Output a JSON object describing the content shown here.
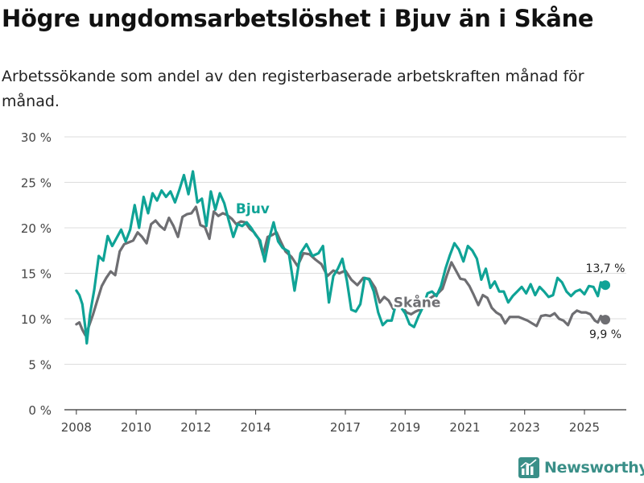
{
  "title": "Högre ungdomsarbetslöshet i Bjuv än i Skåne",
  "subtitle": "Arbetssökande som andel av den registerbaserade arbetskraften månad för månad.",
  "brand": {
    "name": "Newsworthy",
    "icon": "bar-chart-logo-icon"
  },
  "colors": {
    "bjuv": "#0fa396",
    "skane": "#6e6e72",
    "grid": "#dddddd",
    "axis": "#333333"
  },
  "chart_data": {
    "type": "line",
    "ylim": [
      0,
      30
    ],
    "xlim": [
      2007.6,
      2026.4
    ],
    "yticks": [
      0,
      5,
      10,
      15,
      20,
      25,
      30
    ],
    "ytick_labels": [
      "0 %",
      "5 %",
      "10 %",
      "15 %",
      "20 %",
      "25 %",
      "30 %"
    ],
    "xticks": [
      2008,
      2010,
      2012,
      2014,
      2017,
      2019,
      2021,
      2023,
      2025
    ],
    "xtick_labels": [
      "2008",
      "2010",
      "2012",
      "2014",
      "2017",
      "2019",
      "2021",
      "2023",
      "2025"
    ],
    "series": [
      {
        "name": "Bjuv",
        "label": "Bjuv",
        "end_label": "13,7 %",
        "color": "#0fa396",
        "points": [
          [
            2008.0,
            13.1
          ],
          [
            2008.1,
            12.6
          ],
          [
            2008.2,
            11.6
          ],
          [
            2008.3,
            9.0
          ],
          [
            2008.35,
            7.3
          ],
          [
            2008.45,
            10.4
          ],
          [
            2008.6,
            13.2
          ],
          [
            2008.75,
            16.9
          ],
          [
            2008.9,
            16.4
          ],
          [
            2009.05,
            19.1
          ],
          [
            2009.2,
            18.0
          ],
          [
            2009.35,
            18.9
          ],
          [
            2009.5,
            19.8
          ],
          [
            2009.65,
            18.5
          ],
          [
            2009.8,
            19.8
          ],
          [
            2009.95,
            22.5
          ],
          [
            2010.1,
            20.0
          ],
          [
            2010.25,
            23.4
          ],
          [
            2010.4,
            21.6
          ],
          [
            2010.55,
            23.8
          ],
          [
            2010.7,
            23.0
          ],
          [
            2010.85,
            24.1
          ],
          [
            2011.0,
            23.4
          ],
          [
            2011.15,
            24.0
          ],
          [
            2011.3,
            22.8
          ],
          [
            2011.45,
            24.2
          ],
          [
            2011.6,
            25.8
          ],
          [
            2011.75,
            23.7
          ],
          [
            2011.9,
            26.2
          ],
          [
            2012.05,
            22.8
          ],
          [
            2012.2,
            23.2
          ],
          [
            2012.35,
            20.2
          ],
          [
            2012.5,
            24.0
          ],
          [
            2012.65,
            22.0
          ],
          [
            2012.8,
            23.8
          ],
          [
            2012.95,
            22.7
          ],
          [
            2013.1,
            20.8
          ],
          [
            2013.25,
            19.0
          ],
          [
            2013.4,
            20.4
          ],
          [
            2013.55,
            20.2
          ],
          [
            2013.7,
            20.6
          ],
          [
            2013.85,
            20.0
          ],
          [
            2014.0,
            19.2
          ],
          [
            2014.15,
            18.6
          ],
          [
            2014.3,
            16.3
          ],
          [
            2014.45,
            18.8
          ],
          [
            2014.6,
            20.6
          ],
          [
            2014.75,
            18.5
          ],
          [
            2014.9,
            17.8
          ],
          [
            2015.1,
            17.4
          ],
          [
            2015.3,
            13.1
          ],
          [
            2015.5,
            17.2
          ],
          [
            2015.7,
            18.2
          ],
          [
            2015.9,
            16.9
          ],
          [
            2016.1,
            17.2
          ],
          [
            2016.25,
            18.0
          ],
          [
            2016.45,
            11.8
          ],
          [
            2016.6,
            14.7
          ],
          [
            2016.75,
            15.5
          ],
          [
            2016.9,
            16.6
          ],
          [
            2017.05,
            14.2
          ],
          [
            2017.2,
            11.0
          ],
          [
            2017.35,
            10.8
          ],
          [
            2017.5,
            11.6
          ],
          [
            2017.65,
            14.5
          ],
          [
            2017.8,
            14.3
          ],
          [
            2017.95,
            13.0
          ],
          [
            2018.1,
            10.7
          ],
          [
            2018.25,
            9.3
          ],
          [
            2018.4,
            9.8
          ],
          [
            2018.55,
            9.8
          ],
          [
            2018.7,
            11.7
          ],
          [
            2018.85,
            11.3
          ],
          [
            2019.0,
            10.6
          ],
          [
            2019.15,
            9.4
          ],
          [
            2019.3,
            9.1
          ],
          [
            2019.45,
            10.3
          ],
          [
            2019.6,
            11.3
          ],
          [
            2019.75,
            12.8
          ],
          [
            2019.9,
            13.0
          ],
          [
            2020.05,
            12.5
          ],
          [
            2020.2,
            13.6
          ],
          [
            2020.35,
            15.5
          ],
          [
            2020.5,
            17.0
          ],
          [
            2020.65,
            18.3
          ],
          [
            2020.8,
            17.6
          ],
          [
            2020.95,
            16.3
          ],
          [
            2021.1,
            18.0
          ],
          [
            2021.25,
            17.5
          ],
          [
            2021.4,
            16.6
          ],
          [
            2021.55,
            14.3
          ],
          [
            2021.7,
            15.5
          ],
          [
            2021.85,
            13.4
          ],
          [
            2022.0,
            14.1
          ],
          [
            2022.15,
            13.0
          ],
          [
            2022.3,
            13.0
          ],
          [
            2022.45,
            11.8
          ],
          [
            2022.6,
            12.5
          ],
          [
            2022.75,
            13.0
          ],
          [
            2022.9,
            13.5
          ],
          [
            2023.05,
            12.8
          ],
          [
            2023.2,
            13.8
          ],
          [
            2023.35,
            12.6
          ],
          [
            2023.5,
            13.5
          ],
          [
            2023.65,
            13.0
          ],
          [
            2023.8,
            12.4
          ],
          [
            2023.95,
            12.6
          ],
          [
            2024.1,
            14.5
          ],
          [
            2024.25,
            14.0
          ],
          [
            2024.4,
            13.0
          ],
          [
            2024.55,
            12.5
          ],
          [
            2024.7,
            13.0
          ],
          [
            2024.85,
            13.2
          ],
          [
            2025.0,
            12.7
          ],
          [
            2025.15,
            13.6
          ],
          [
            2025.3,
            13.5
          ],
          [
            2025.45,
            12.5
          ],
          [
            2025.55,
            14.0
          ],
          [
            2025.7,
            13.7
          ]
        ]
      },
      {
        "name": "Skåne",
        "label": "Skåne",
        "end_label": "9,9 %",
        "color": "#6e6e72",
        "points": [
          [
            2008.0,
            9.4
          ],
          [
            2008.1,
            9.6
          ],
          [
            2008.2,
            8.8
          ],
          [
            2008.3,
            8.2
          ],
          [
            2008.4,
            9.0
          ],
          [
            2008.55,
            10.4
          ],
          [
            2008.7,
            12.0
          ],
          [
            2008.85,
            13.6
          ],
          [
            2009.0,
            14.5
          ],
          [
            2009.15,
            15.2
          ],
          [
            2009.3,
            14.8
          ],
          [
            2009.45,
            17.4
          ],
          [
            2009.6,
            18.2
          ],
          [
            2009.75,
            18.4
          ],
          [
            2009.9,
            18.6
          ],
          [
            2010.05,
            19.5
          ],
          [
            2010.2,
            19.0
          ],
          [
            2010.35,
            18.3
          ],
          [
            2010.5,
            20.4
          ],
          [
            2010.65,
            20.8
          ],
          [
            2010.8,
            20.2
          ],
          [
            2010.95,
            19.8
          ],
          [
            2011.1,
            21.1
          ],
          [
            2011.25,
            20.2
          ],
          [
            2011.4,
            19.0
          ],
          [
            2011.55,
            21.2
          ],
          [
            2011.7,
            21.5
          ],
          [
            2011.85,
            21.6
          ],
          [
            2012.0,
            22.3
          ],
          [
            2012.15,
            20.3
          ],
          [
            2012.3,
            20.1
          ],
          [
            2012.45,
            18.8
          ],
          [
            2012.6,
            21.8
          ],
          [
            2012.75,
            21.3
          ],
          [
            2012.9,
            21.6
          ],
          [
            2013.05,
            21.4
          ],
          [
            2013.2,
            21.0
          ],
          [
            2013.35,
            20.4
          ],
          [
            2013.5,
            20.7
          ],
          [
            2013.65,
            20.6
          ],
          [
            2013.8,
            19.9
          ],
          [
            2013.95,
            19.5
          ],
          [
            2014.1,
            18.8
          ],
          [
            2014.25,
            17.0
          ],
          [
            2014.4,
            19.0
          ],
          [
            2014.55,
            19.2
          ],
          [
            2014.7,
            19.5
          ],
          [
            2014.85,
            18.4
          ],
          [
            2015.0,
            17.4
          ],
          [
            2015.2,
            16.8
          ],
          [
            2015.4,
            15.8
          ],
          [
            2015.6,
            17.2
          ],
          [
            2015.8,
            17.1
          ],
          [
            2016.0,
            16.5
          ],
          [
            2016.2,
            16.0
          ],
          [
            2016.4,
            14.7
          ],
          [
            2016.6,
            15.3
          ],
          [
            2016.8,
            15.0
          ],
          [
            2017.0,
            15.3
          ],
          [
            2017.2,
            14.3
          ],
          [
            2017.4,
            13.7
          ],
          [
            2017.6,
            14.5
          ],
          [
            2017.8,
            14.4
          ],
          [
            2018.0,
            13.4
          ],
          [
            2018.15,
            11.8
          ],
          [
            2018.3,
            12.4
          ],
          [
            2018.45,
            12.0
          ],
          [
            2018.6,
            11.1
          ],
          [
            2018.75,
            11.6
          ],
          [
            2018.9,
            11.3
          ],
          [
            2019.05,
            10.7
          ],
          [
            2019.2,
            10.5
          ],
          [
            2019.35,
            10.8
          ],
          [
            2019.5,
            11.0
          ],
          [
            2019.65,
            11.5
          ],
          [
            2019.8,
            12.2
          ],
          [
            2019.95,
            12.5
          ],
          [
            2020.1,
            12.8
          ],
          [
            2020.25,
            13.3
          ],
          [
            2020.4,
            14.8
          ],
          [
            2020.55,
            16.2
          ],
          [
            2020.7,
            15.3
          ],
          [
            2020.85,
            14.4
          ],
          [
            2021.0,
            14.3
          ],
          [
            2021.15,
            13.6
          ],
          [
            2021.3,
            12.6
          ],
          [
            2021.45,
            11.5
          ],
          [
            2021.6,
            12.6
          ],
          [
            2021.75,
            12.3
          ],
          [
            2021.9,
            11.2
          ],
          [
            2022.05,
            10.7
          ],
          [
            2022.2,
            10.4
          ],
          [
            2022.35,
            9.5
          ],
          [
            2022.5,
            10.2
          ],
          [
            2022.65,
            10.2
          ],
          [
            2022.8,
            10.2
          ],
          [
            2022.95,
            10.0
          ],
          [
            2023.1,
            9.8
          ],
          [
            2023.25,
            9.5
          ],
          [
            2023.4,
            9.2
          ],
          [
            2023.55,
            10.3
          ],
          [
            2023.7,
            10.4
          ],
          [
            2023.85,
            10.3
          ],
          [
            2024.0,
            10.6
          ],
          [
            2024.15,
            10.0
          ],
          [
            2024.3,
            9.8
          ],
          [
            2024.45,
            9.3
          ],
          [
            2024.6,
            10.5
          ],
          [
            2024.75,
            10.9
          ],
          [
            2024.9,
            10.7
          ],
          [
            2025.05,
            10.7
          ],
          [
            2025.2,
            10.5
          ],
          [
            2025.35,
            9.8
          ],
          [
            2025.45,
            9.6
          ],
          [
            2025.55,
            10.3
          ],
          [
            2025.7,
            9.9
          ]
        ]
      }
    ]
  }
}
